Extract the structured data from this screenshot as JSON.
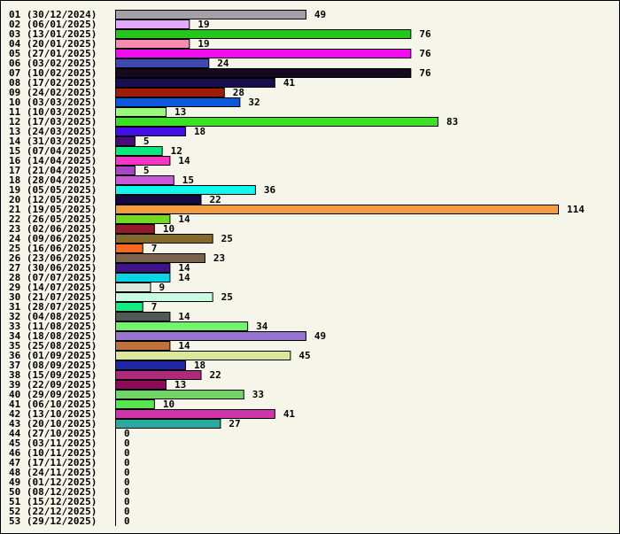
{
  "chart_data": {
    "type": "bar",
    "orientation": "horizontal",
    "title": "",
    "xlabel": "",
    "ylabel": "",
    "xlim": [
      0,
      114
    ],
    "grid": false,
    "categories": [
      "01 (30/12/2024)",
      "02 (06/01/2025)",
      "03 (13/01/2025)",
      "04 (20/01/2025)",
      "05 (27/01/2025)",
      "06 (03/02/2025)",
      "07 (10/02/2025)",
      "08 (17/02/2025)",
      "09 (24/02/2025)",
      "10 (03/03/2025)",
      "11 (10/03/2025)",
      "12 (17/03/2025)",
      "13 (24/03/2025)",
      "14 (31/03/2025)",
      "15 (07/04/2025)",
      "16 (14/04/2025)",
      "17 (21/04/2025)",
      "18 (28/04/2025)",
      "19 (05/05/2025)",
      "20 (12/05/2025)",
      "21 (19/05/2025)",
      "22 (26/05/2025)",
      "23 (02/06/2025)",
      "24 (09/06/2025)",
      "25 (16/06/2025)",
      "26 (23/06/2025)",
      "27 (30/06/2025)",
      "28 (07/07/2025)",
      "29 (14/07/2025)",
      "30 (21/07/2025)",
      "31 (28/07/2025)",
      "32 (04/08/2025)",
      "33 (11/08/2025)",
      "34 (18/08/2025)",
      "35 (25/08/2025)",
      "36 (01/09/2025)",
      "37 (08/09/2025)",
      "38 (15/09/2025)",
      "39 (22/09/2025)",
      "40 (29/09/2025)",
      "41 (06/10/2025)",
      "42 (13/10/2025)",
      "43 (20/10/2025)",
      "44 (27/10/2025)",
      "45 (03/11/2025)",
      "46 (10/11/2025)",
      "47 (17/11/2025)",
      "48 (24/11/2025)",
      "49 (01/12/2025)",
      "50 (08/12/2025)",
      "51 (15/12/2025)",
      "52 (22/12/2025)",
      "53 (29/12/2025)"
    ],
    "values": [
      49,
      19,
      76,
      19,
      76,
      24,
      76,
      41,
      28,
      32,
      13,
      83,
      18,
      5,
      12,
      14,
      5,
      15,
      36,
      22,
      114,
      14,
      10,
      25,
      7,
      23,
      14,
      14,
      9,
      25,
      7,
      14,
      34,
      49,
      14,
      45,
      18,
      22,
      13,
      33,
      10,
      41,
      27,
      0,
      0,
      0,
      0,
      0,
      0,
      0,
      0,
      0,
      0
    ],
    "colors": [
      "#a59fa8",
      "#e3a7fb",
      "#24c81a",
      "#f78cb3",
      "#f30cf0",
      "#3e48b3",
      "#140a20",
      "#190e4e",
      "#a21b06",
      "#0b57dd",
      "#9bfa7e",
      "#3de024",
      "#430de8",
      "#4b0a7b",
      "#07e97c",
      "#f834c5",
      "#ac44c8",
      "#c95ad7",
      "#0ff9ec",
      "#160842",
      "#f29c42",
      "#72da22",
      "#95192b",
      "#846928",
      "#fd6720",
      "#7a624b",
      "#3e1488",
      "#07d5e6",
      "#dfe8dd",
      "#c9fae2",
      "#12eb80",
      "#4e5a52",
      "#6ff46c",
      "#9774cf",
      "#c1713a",
      "#d9e89c",
      "#2126a6",
      "#b02a7b",
      "#8e0a5b",
      "#72d568",
      "#55e54c",
      "#d035a9",
      "#2aa9a0",
      "#000000",
      "#000000",
      "#000000",
      "#000000",
      "#000000",
      "#000000",
      "#000000",
      "#000000",
      "#000000",
      "#000000"
    ]
  }
}
